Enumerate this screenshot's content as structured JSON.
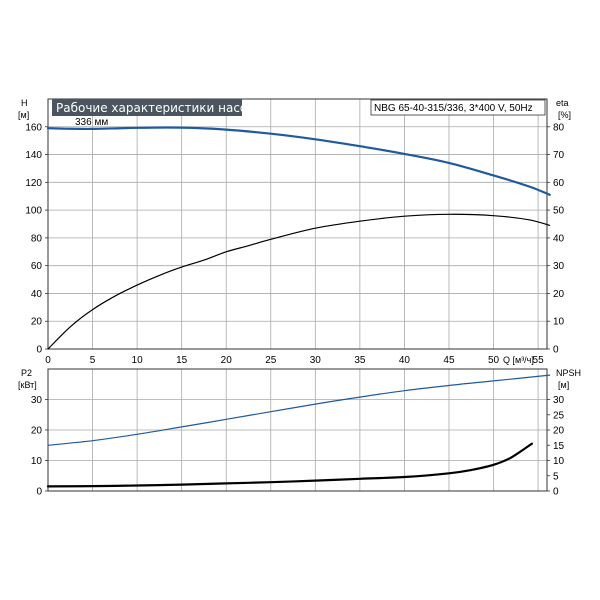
{
  "header": {
    "title": "Рабочие характеристики насоса",
    "model": "NBG 65-40-315/336, 3*400 V, 50Hz",
    "title_bg": "#4a5560"
  },
  "chart_data": [
    {
      "type": "line",
      "name": "upper",
      "xlabel": "Q [м³/ч]",
      "xlim": [
        0,
        56
      ],
      "x_ticks": [
        0,
        5,
        10,
        15,
        20,
        25,
        30,
        35,
        40,
        45,
        50,
        55
      ],
      "y_left": {
        "label_top": "H",
        "label_unit": "[м]",
        "ylim": [
          0,
          180
        ],
        "ticks": [
          0,
          20,
          40,
          60,
          80,
          100,
          120,
          140,
          160
        ]
      },
      "y_right": {
        "label_top": "eta",
        "label_unit": "[%]",
        "ylim": [
          0,
          90
        ],
        "ticks": [
          0,
          10,
          20,
          30,
          40,
          50,
          60,
          70,
          80
        ]
      },
      "series": [
        {
          "key": "head",
          "axis": "left",
          "label": "336 мм",
          "color": "#1f5a9e",
          "width": 2.2,
          "x": [
            0,
            2,
            5,
            10,
            15,
            20,
            25,
            30,
            35,
            40,
            45,
            50,
            54,
            56.3
          ],
          "y": [
            159,
            158.6,
            158.5,
            159.3,
            159.4,
            158.0,
            155.0,
            151.0,
            146.0,
            140.5,
            134.0,
            125.0,
            117.0,
            111.0
          ]
        },
        {
          "key": "efficiency",
          "axis": "right",
          "color": "#000000",
          "width": 1.2,
          "x": [
            0,
            2.5,
            5,
            7.5,
            10,
            12.5,
            15,
            17.5,
            20,
            22.5,
            25,
            30,
            35,
            40,
            45,
            50,
            54,
            56.3
          ],
          "y": [
            0,
            8,
            14.2,
            19,
            23,
            26.5,
            29.5,
            32,
            35,
            37.2,
            39.5,
            43.5,
            46,
            47.8,
            48.5,
            48,
            46.5,
            44.5
          ]
        }
      ]
    },
    {
      "type": "line",
      "name": "lower",
      "xlim": [
        0,
        56
      ],
      "y_left": {
        "label_top": "P2",
        "label_unit": "[кВт]",
        "ylim": [
          0,
          40
        ],
        "ticks": [
          0,
          10,
          20,
          30
        ]
      },
      "y_right": {
        "label_top": "NPSH",
        "label_unit": "[м]",
        "ylim": [
          0,
          40
        ],
        "ticks": [
          0,
          5,
          10,
          15,
          20,
          25,
          30
        ]
      },
      "series": [
        {
          "key": "power",
          "axis": "left",
          "color": "#1f5a9e",
          "width": 1.2,
          "x": [
            0,
            5,
            10,
            15,
            20,
            25,
            30,
            35,
            40,
            45,
            50,
            56.3
          ],
          "y": [
            15,
            16.5,
            18.6,
            21,
            23.5,
            26,
            28.5,
            30.8,
            32.9,
            34.6,
            36.1,
            38.0
          ]
        },
        {
          "key": "npsh",
          "axis": "right",
          "color": "#000000",
          "width": 2.2,
          "x": [
            0,
            5,
            10,
            15,
            20,
            25,
            30,
            35,
            40,
            45,
            47.5,
            50,
            52,
            54.3
          ],
          "y": [
            1.5,
            1.6,
            1.8,
            2.1,
            2.5,
            2.9,
            3.4,
            4.0,
            4.6,
            5.8,
            6.9,
            8.6,
            11.0,
            15.5
          ]
        }
      ]
    }
  ]
}
